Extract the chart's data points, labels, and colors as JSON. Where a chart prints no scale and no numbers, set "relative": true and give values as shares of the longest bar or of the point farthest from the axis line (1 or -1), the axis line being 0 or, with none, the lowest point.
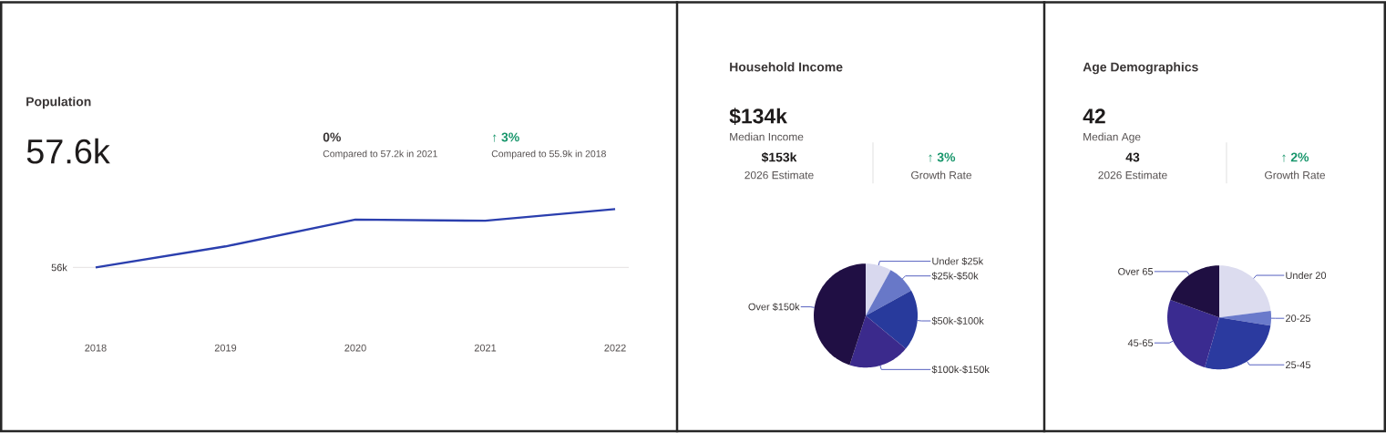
{
  "chart_data": [
    {
      "type": "line",
      "title": "Population",
      "subtitle": "57.6k",
      "categories": [
        "2018",
        "2019",
        "2020",
        "2021",
        "2022"
      ],
      "values": [
        0,
        0.36,
        0.82,
        0.8,
        1
      ],
      "color": "#2b3fae",
      "relative": true,
      "ref_lines": [
        {
          "axis": "y",
          "value": 0,
          "label": "56k",
          "color": "#e6e1e1"
        }
      ],
      "annotations": [
        "0%",
        "Compared to 57.2k in 2021",
        "↑ 3%",
        "Compared to 55.9k in 2018"
      ]
    },
    {
      "type": "pie",
      "title": "Household Income",
      "subtitle": "$134k",
      "categories": [
        "Under $25k",
        "$25k-$50k",
        "$50k-$100k",
        "$100k-$150k",
        "Over $150k"
      ],
      "values": [
        8,
        9,
        19,
        19,
        45
      ],
      "colors": [
        "#d8d8ee",
        "#6878c8",
        "#283a9c",
        "#3b2a8c",
        "#200f44"
      ],
      "annotations": [
        "Median Income",
        "$153k",
        "2026 Estimate",
        "↑ 3%",
        "Growth Rate"
      ]
    },
    {
      "type": "pie",
      "title": "Age Demographics",
      "subtitle": "42",
      "categories": [
        "Under 20",
        "20-25",
        "25-45",
        "45-65",
        "Over 65"
      ],
      "values": [
        23,
        4.5,
        27,
        26,
        19.5
      ],
      "colors": [
        "#dcdcef",
        "#6a7acb",
        "#2b3a9f",
        "#3a2b90",
        "#1f0f42"
      ],
      "annotations": [
        "Median Age",
        "43",
        "2026 Estimate",
        "↑ 2%",
        "Growth Rate"
      ]
    }
  ]
}
